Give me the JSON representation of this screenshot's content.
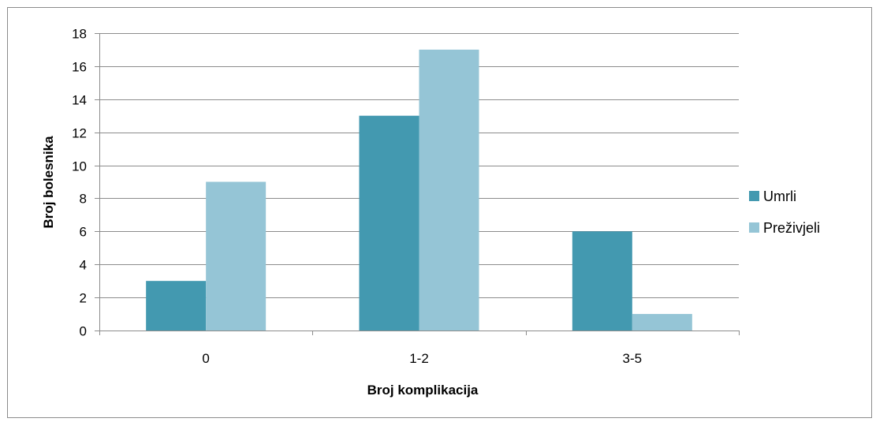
{
  "chart_data": {
    "type": "bar",
    "categories": [
      "0",
      "1-2",
      "3-5"
    ],
    "series": [
      {
        "name": "Umrli",
        "values": [
          3,
          13,
          6
        ],
        "color": "#4399b0"
      },
      {
        "name": "Preživjeli",
        "values": [
          9,
          17,
          1
        ],
        "color": "#95c5d6"
      }
    ],
    "xlabel": "Broj komplikacija",
    "ylabel": "Broj bolesnika",
    "ylim": [
      0,
      18
    ],
    "yticks": [
      0,
      2,
      4,
      6,
      8,
      10,
      12,
      14,
      16,
      18
    ],
    "grid": true,
    "legend_position": "right"
  }
}
